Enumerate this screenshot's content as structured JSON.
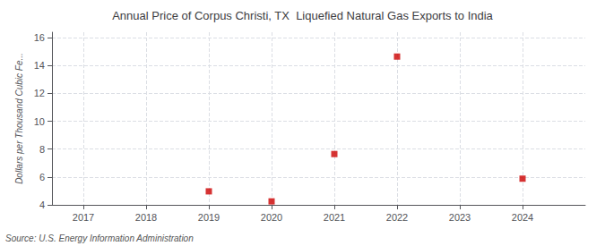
{
  "chart_data": {
    "type": "scatter",
    "title": "Annual Price of Corpus Christi, TX  Liquefied Natural Gas Exports to India",
    "ylabel": "Dollars per Thousand Cubic Fe...",
    "source": "Source: U.S. Energy Information Administration",
    "x": [
      2019,
      2020,
      2021,
      2022,
      2024
    ],
    "values": [
      4.97,
      4.25,
      7.65,
      14.65,
      5.88
    ],
    "color": "#cc0000",
    "marker": "square",
    "xlim": [
      2016.5,
      2025.0
    ],
    "xticks": [
      2017,
      2018,
      2019,
      2020,
      2021,
      2022,
      2023,
      2024
    ],
    "ylim": [
      4,
      16.4
    ],
    "yticks": [
      4,
      6,
      8,
      10,
      12,
      14,
      16
    ],
    "grid": true
  }
}
